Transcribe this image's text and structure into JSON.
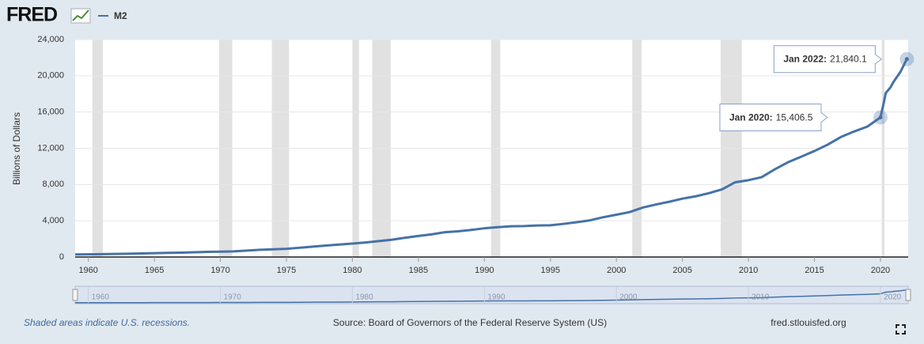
{
  "chart_data": {
    "type": "line",
    "brand": "FRED",
    "y_label": "Billions of Dollars",
    "x": [
      1959,
      1960,
      1961,
      1962,
      1963,
      1964,
      1965,
      1966,
      1967,
      1968,
      1969,
      1970,
      1971,
      1972,
      1973,
      1974,
      1975,
      1976,
      1977,
      1978,
      1979,
      1980,
      1981,
      1982,
      1983,
      1984,
      1985,
      1986,
      1987,
      1988,
      1989,
      1990,
      1991,
      1992,
      1993,
      1994,
      1995,
      1996,
      1997,
      1998,
      1999,
      2000,
      2001,
      2002,
      2003,
      2004,
      2005,
      2006,
      2007,
      2008,
      2009,
      2010,
      2011,
      2012,
      2013,
      2014,
      2015,
      2016,
      2017,
      2018,
      2019,
      2020,
      2020.25,
      2020.4,
      2020.75,
      2021,
      2021.5,
      2022
    ],
    "series": [
      {
        "name": "M2",
        "color": "#4572a7",
        "values": [
          287,
          298,
          312,
          334,
          362,
          392,
          424,
          453,
          480,
          525,
          567,
          588,
          627,
          710,
          800,
          856,
          908,
          1020,
          1150,
          1270,
          1370,
          1480,
          1600,
          1760,
          1910,
          2130,
          2320,
          2500,
          2740,
          2840,
          2990,
          3170,
          3290,
          3390,
          3410,
          3480,
          3500,
          3660,
          3840,
          4050,
          4390,
          4670,
          4960,
          5460,
          5800,
          6100,
          6440,
          6700,
          7040,
          7470,
          8250,
          8480,
          8810,
          9680,
          10460,
          11070,
          11700,
          12400,
          13240,
          13850,
          14390,
          15406.5,
          17000,
          18100,
          18700,
          19350,
          20400,
          21840.1
        ]
      }
    ],
    "xlim": [
      1959,
      2022.1
    ],
    "ylim": [
      0,
      24000
    ],
    "xticks": [
      1960,
      1965,
      1970,
      1975,
      1980,
      1985,
      1990,
      1995,
      2000,
      2005,
      2010,
      2015,
      2020
    ],
    "yticks": [
      0,
      {
        "value": 4000,
        "label": "4,000"
      },
      {
        "value": 8000,
        "label": "8,000"
      },
      {
        "value": 12000,
        "label": "12,000"
      },
      {
        "value": 16000,
        "label": "16,000"
      },
      {
        "value": 20000,
        "label": "20,000"
      },
      {
        "value": 24000,
        "label": "24,000"
      }
    ],
    "navigator_xticks": [
      1960,
      1970,
      1980,
      1990,
      2000,
      2010,
      2020
    ],
    "grid": true,
    "recession_color": "#e1e1e1",
    "recessions": [
      [
        1960.3,
        1961.1
      ],
      [
        1969.9,
        1970.9
      ],
      [
        1973.9,
        1975.2
      ],
      [
        1980.0,
        1980.5
      ],
      [
        1981.5,
        1982.9
      ],
      [
        1990.5,
        1991.2
      ],
      [
        2001.2,
        2001.9
      ],
      [
        2007.9,
        2009.5
      ],
      [
        2020.1,
        2020.3
      ]
    ],
    "annotations": [
      {
        "label": "Jan 2020:",
        "x": 2020,
        "value": 15406.5,
        "value_label": "15,406.5"
      },
      {
        "label": "Jan 2022:",
        "x": 2022,
        "value": 21840.1,
        "value_label": "21,840.1"
      }
    ],
    "note": "Shaded areas indicate U.S. recessions.",
    "source": "Source: Board of Governors of the Federal Reserve System (US)",
    "site": "fred.stlouisfed.org"
  }
}
